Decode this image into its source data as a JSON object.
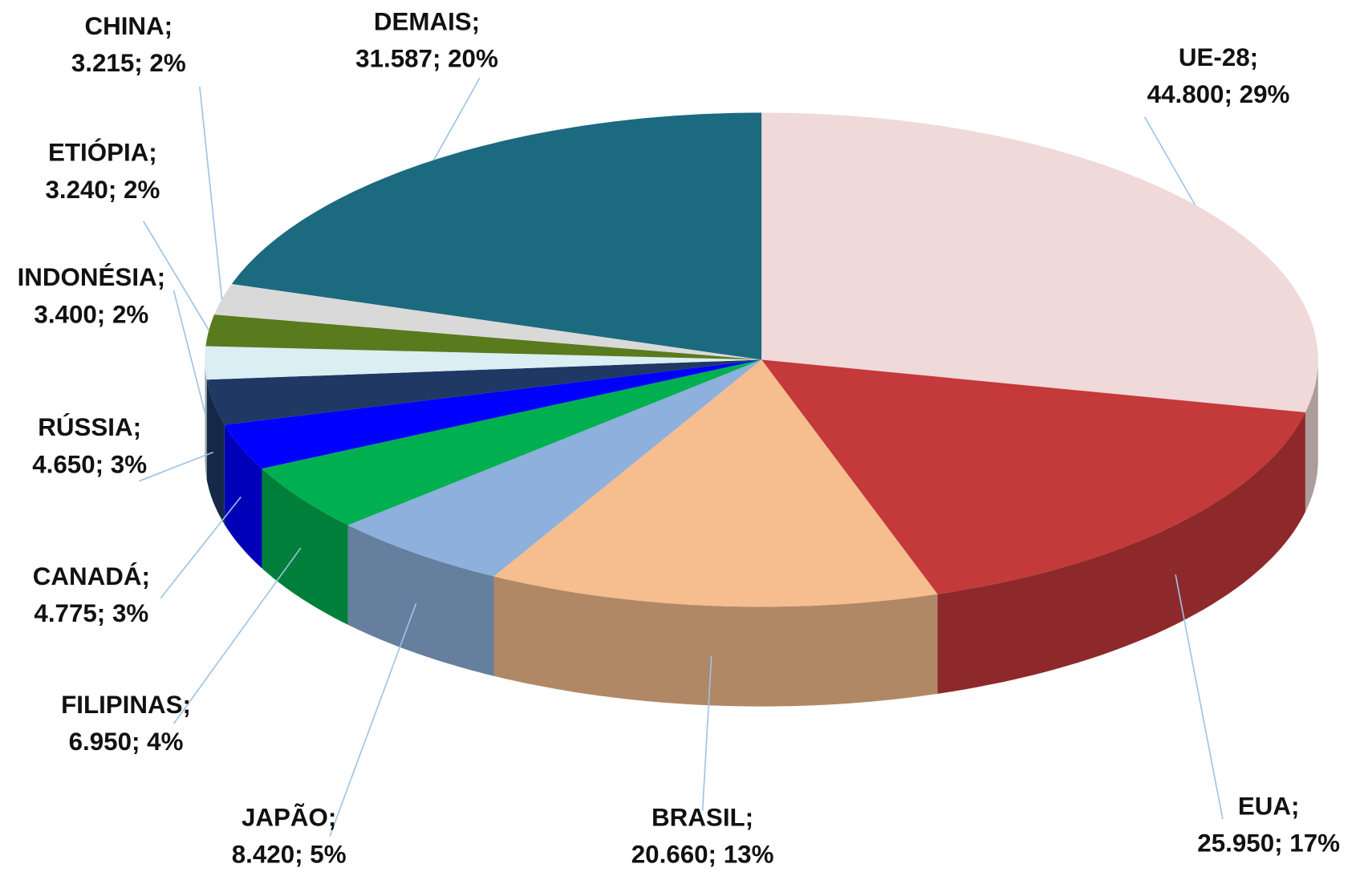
{
  "chart_data": {
    "type": "pie3d",
    "categories": [
      "UE-28;",
      "EUA;",
      "BRASIL;",
      "JAPÃO;",
      "FILIPINAS;",
      "CANADÁ;",
      "RÚSSIA;",
      "INDONÉSIA;",
      "ETIÓPIA;",
      "CHINA;",
      "DEMAIS;"
    ],
    "values": [
      44800,
      25950,
      20660,
      8420,
      6950,
      4775,
      4650,
      3400,
      3240,
      3215,
      31587
    ],
    "value_labels": [
      "44.800;",
      "25.950;",
      "20.660;",
      "8.420;",
      "6.950;",
      "4.775;",
      "4.650;",
      "3.400;",
      "3.240;",
      "3.215;",
      "31.587;"
    ],
    "percentages": [
      29,
      17,
      13,
      5,
      4,
      3,
      3,
      2,
      2,
      2,
      20
    ],
    "percentage_labels": [
      "29%",
      "17%",
      "13%",
      "5%",
      "4%",
      "3%",
      "3%",
      "2%",
      "2%",
      "2%",
      "20%"
    ],
    "colors": [
      "#f0d9d9",
      "#c4393a",
      "#f6bd8e",
      "#8db0dc",
      "#00b050",
      "#0000ff",
      "#1f3864",
      "#dbeef4",
      "#5a7a1e",
      "#d9d9d9",
      "#1b6a80"
    ]
  }
}
